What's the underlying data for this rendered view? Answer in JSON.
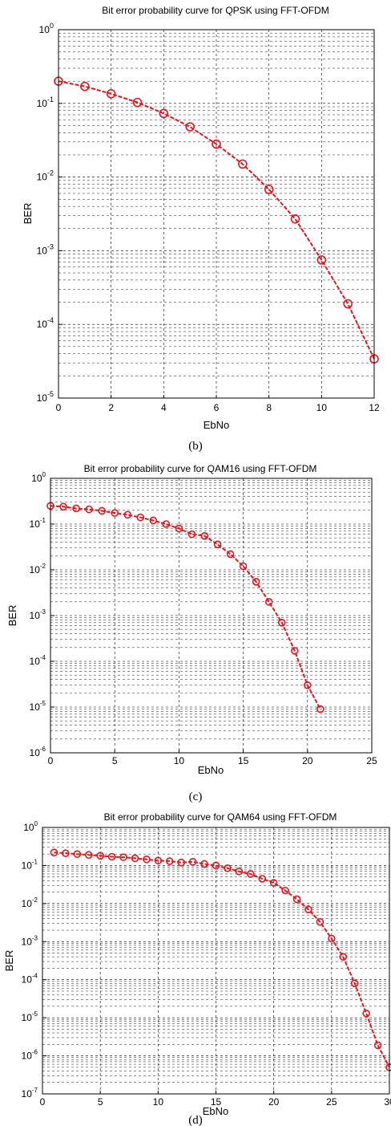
{
  "chart_data": [
    {
      "type": "line",
      "title": "Bit error probability curve for QPSK using FFT-OFDM",
      "xlabel": "EbNo",
      "ylabel": "BER",
      "caption": "(b)",
      "yscale": "log",
      "xlim": [
        0,
        12
      ],
      "ylim": [
        1e-05,
        1
      ],
      "x_ticks": [
        0,
        2,
        4,
        6,
        8,
        10,
        12
      ],
      "x_tick_labels": [
        "0",
        "2",
        "4",
        "6",
        "8",
        "10",
        "12"
      ],
      "y_tick_exponents": [
        0,
        -1,
        -2,
        -3,
        -4,
        -5
      ],
      "grid": true,
      "series_color": "#e8141b",
      "series": [
        {
          "x": [
            0,
            1,
            2,
            3,
            4,
            5,
            6,
            7,
            8,
            9,
            10,
            11,
            12
          ],
          "values": [
            0.2,
            0.17,
            0.135,
            0.103,
            0.073,
            0.048,
            0.028,
            0.015,
            0.0068,
            0.0027,
            0.00075,
            0.00019,
            3.4e-05
          ]
        }
      ]
    },
    {
      "type": "line",
      "title": "Bit error probability curve for QAM16 using FFT-OFDM",
      "xlabel": "EbNo",
      "ylabel": "BER",
      "caption": "(c)",
      "yscale": "log",
      "xlim": [
        0,
        25
      ],
      "ylim": [
        1e-06,
        1
      ],
      "x_ticks": [
        0,
        5,
        10,
        15,
        20,
        25
      ],
      "x_tick_labels": [
        "0",
        "5",
        "10",
        "15",
        "20",
        "25"
      ],
      "y_tick_exponents": [
        0,
        -1,
        -2,
        -3,
        -4,
        -5,
        -6
      ],
      "grid": true,
      "series_color": "#e8141b",
      "series": [
        {
          "x": [
            0,
            1,
            2,
            3,
            4,
            5,
            6,
            7,
            8,
            9,
            10,
            11,
            12,
            13,
            14,
            15,
            16,
            17,
            18,
            19,
            20,
            21
          ],
          "values": [
            0.25,
            0.24,
            0.22,
            0.21,
            0.195,
            0.175,
            0.16,
            0.14,
            0.12,
            0.1,
            0.08,
            0.06,
            0.055,
            0.036,
            0.022,
            0.012,
            0.0055,
            0.002,
            0.0007,
            0.00017,
            3e-05,
            9e-06
          ]
        }
      ]
    },
    {
      "type": "line",
      "title": "Bit error probability curve for QAM64 using FFT-OFDM",
      "xlabel": "EbNo",
      "ylabel": "BER",
      "caption": "(d)",
      "yscale": "log",
      "xlim": [
        0,
        30
      ],
      "ylim": [
        1e-07,
        1
      ],
      "x_ticks": [
        0,
        5,
        10,
        15,
        20,
        25,
        30
      ],
      "x_tick_labels": [
        "0",
        "5",
        "10",
        "15",
        "20",
        "25",
        "30"
      ],
      "y_tick_exponents": [
        0,
        -1,
        -2,
        -3,
        -4,
        -5,
        -6,
        -7
      ],
      "grid": true,
      "series_color": "#e8141b",
      "series": [
        {
          "x": [
            1,
            2,
            3,
            4,
            5,
            6,
            7,
            8,
            9,
            10,
            11,
            12,
            13,
            14,
            15,
            16,
            17,
            18,
            19,
            20,
            21,
            22,
            23,
            24,
            25,
            26,
            27,
            28,
            29,
            30
          ],
          "values": [
            0.22,
            0.21,
            0.2,
            0.19,
            0.18,
            0.17,
            0.165,
            0.155,
            0.145,
            0.135,
            0.13,
            0.12,
            0.125,
            0.11,
            0.1,
            0.085,
            0.07,
            0.06,
            0.045,
            0.035,
            0.022,
            0.013,
            0.007,
            0.0033,
            0.0012,
            0.0004,
            8e-05,
            1.3e-05,
            1.9e-06,
            5e-07
          ]
        }
      ]
    }
  ]
}
